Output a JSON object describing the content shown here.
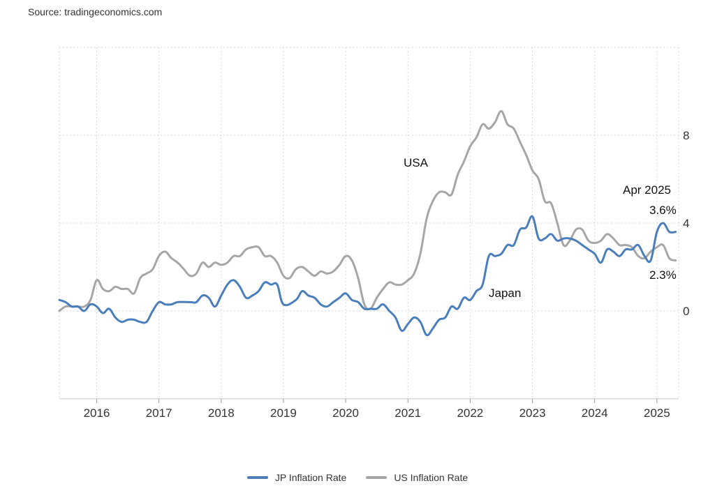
{
  "source": "Source: tradingeconomics.com",
  "legend": [
    {
      "label": "JP Inflation Rate",
      "color": "#4a7ebb"
    },
    {
      "label": "US Inflation Rate",
      "color": "#a6a6a6"
    }
  ],
  "annotations": {
    "usa_label": "USA",
    "japan_label": "Japan",
    "date_label": "Apr 2025",
    "jp_last": "3.6%",
    "us_last": "2.3%"
  },
  "chart_data": {
    "type": "line",
    "xlim": [
      2015.4,
      2025.35
    ],
    "ylim": [
      -4,
      12
    ],
    "x_ticks": [
      2016,
      2017,
      2018,
      2019,
      2020,
      2021,
      2022,
      2023,
      2024,
      2025
    ],
    "x_tick_labels": [
      "2016",
      "2017",
      "2018",
      "2019",
      "2020",
      "2021",
      "2022",
      "2023",
      "2024",
      "2025"
    ],
    "y_ticks": [
      0,
      4,
      8
    ],
    "y_tick_labels": [
      "0",
      "4",
      "8"
    ],
    "grid": true,
    "legend_position": "bottom",
    "series": [
      {
        "name": "JP Inflation Rate",
        "color": "#4a7ebb",
        "points": [
          [
            2015.4,
            0.5
          ],
          [
            2015.5,
            0.4
          ],
          [
            2015.6,
            0.2
          ],
          [
            2015.7,
            0.2
          ],
          [
            2015.8,
            0.0
          ],
          [
            2015.9,
            0.3
          ],
          [
            2016.0,
            0.2
          ],
          [
            2016.1,
            -0.1
          ],
          [
            2016.2,
            0.1
          ],
          [
            2016.3,
            -0.3
          ],
          [
            2016.4,
            -0.5
          ],
          [
            2016.5,
            -0.4
          ],
          [
            2016.6,
            -0.4
          ],
          [
            2016.7,
            -0.5
          ],
          [
            2016.8,
            -0.5
          ],
          [
            2016.9,
            0.0
          ],
          [
            2017.0,
            0.4
          ],
          [
            2017.1,
            0.3
          ],
          [
            2017.2,
            0.3
          ],
          [
            2017.3,
            0.4
          ],
          [
            2017.5,
            0.4
          ],
          [
            2017.6,
            0.4
          ],
          [
            2017.7,
            0.7
          ],
          [
            2017.8,
            0.6
          ],
          [
            2017.9,
            0.2
          ],
          [
            2018.0,
            0.7
          ],
          [
            2018.1,
            1.2
          ],
          [
            2018.2,
            1.4
          ],
          [
            2018.3,
            1.1
          ],
          [
            2018.4,
            0.6
          ],
          [
            2018.5,
            0.7
          ],
          [
            2018.6,
            0.9
          ],
          [
            2018.7,
            1.3
          ],
          [
            2018.8,
            1.2
          ],
          [
            2018.9,
            1.2
          ],
          [
            2019.0,
            0.3
          ],
          [
            2019.2,
            0.5
          ],
          [
            2019.3,
            0.9
          ],
          [
            2019.4,
            0.7
          ],
          [
            2019.5,
            0.6
          ],
          [
            2019.6,
            0.3
          ],
          [
            2019.7,
            0.2
          ],
          [
            2019.8,
            0.4
          ],
          [
            2019.9,
            0.6
          ],
          [
            2020.0,
            0.8
          ],
          [
            2020.1,
            0.5
          ],
          [
            2020.2,
            0.4
          ],
          [
            2020.3,
            0.1
          ],
          [
            2020.4,
            0.1
          ],
          [
            2020.5,
            0.1
          ],
          [
            2020.6,
            0.3
          ],
          [
            2020.7,
            0.0
          ],
          [
            2020.8,
            -0.3
          ],
          [
            2020.9,
            -0.9
          ],
          [
            2021.0,
            -0.6
          ],
          [
            2021.1,
            -0.3
          ],
          [
            2021.2,
            -0.5
          ],
          [
            2021.3,
            -1.1
          ],
          [
            2021.4,
            -0.8
          ],
          [
            2021.5,
            -0.4
          ],
          [
            2021.6,
            -0.3
          ],
          [
            2021.7,
            0.2
          ],
          [
            2021.8,
            0.1
          ],
          [
            2021.9,
            0.6
          ],
          [
            2022.0,
            0.5
          ],
          [
            2022.1,
            0.9
          ],
          [
            2022.2,
            1.2
          ],
          [
            2022.3,
            2.5
          ],
          [
            2022.4,
            2.5
          ],
          [
            2022.5,
            2.6
          ],
          [
            2022.6,
            3.0
          ],
          [
            2022.7,
            3.0
          ],
          [
            2022.8,
            3.7
          ],
          [
            2022.9,
            3.8
          ],
          [
            2023.0,
            4.3
          ],
          [
            2023.1,
            3.3
          ],
          [
            2023.2,
            3.3
          ],
          [
            2023.3,
            3.5
          ],
          [
            2023.4,
            3.2
          ],
          [
            2023.5,
            3.3
          ],
          [
            2023.6,
            3.3
          ],
          [
            2023.7,
            3.2
          ],
          [
            2023.8,
            3.0
          ],
          [
            2023.9,
            2.8
          ],
          [
            2024.0,
            2.6
          ],
          [
            2024.1,
            2.2
          ],
          [
            2024.2,
            2.8
          ],
          [
            2024.3,
            2.7
          ],
          [
            2024.4,
            2.5
          ],
          [
            2024.5,
            2.8
          ],
          [
            2024.6,
            2.8
          ],
          [
            2024.7,
            3.0
          ],
          [
            2024.8,
            2.5
          ],
          [
            2024.9,
            2.3
          ],
          [
            2025.0,
            3.6
          ],
          [
            2025.1,
            4.0
          ],
          [
            2025.2,
            3.6
          ],
          [
            2025.3,
            3.6
          ]
        ]
      },
      {
        "name": "US Inflation Rate",
        "color": "#a6a6a6",
        "points": [
          [
            2015.4,
            0.0
          ],
          [
            2015.5,
            0.2
          ],
          [
            2015.6,
            0.2
          ],
          [
            2015.7,
            0.2
          ],
          [
            2015.8,
            0.2
          ],
          [
            2015.9,
            0.5
          ],
          [
            2016.0,
            1.4
          ],
          [
            2016.1,
            1.0
          ],
          [
            2016.2,
            0.9
          ],
          [
            2016.3,
            1.1
          ],
          [
            2016.4,
            1.0
          ],
          [
            2016.5,
            1.0
          ],
          [
            2016.6,
            0.8
          ],
          [
            2016.7,
            1.5
          ],
          [
            2016.8,
            1.7
          ],
          [
            2016.9,
            1.9
          ],
          [
            2017.0,
            2.5
          ],
          [
            2017.1,
            2.7
          ],
          [
            2017.2,
            2.4
          ],
          [
            2017.3,
            2.2
          ],
          [
            2017.4,
            1.9
          ],
          [
            2017.5,
            1.6
          ],
          [
            2017.6,
            1.7
          ],
          [
            2017.7,
            2.2
          ],
          [
            2017.8,
            2.0
          ],
          [
            2017.9,
            2.2
          ],
          [
            2018.0,
            2.1
          ],
          [
            2018.1,
            2.2
          ],
          [
            2018.2,
            2.5
          ],
          [
            2018.3,
            2.5
          ],
          [
            2018.4,
            2.8
          ],
          [
            2018.5,
            2.9
          ],
          [
            2018.6,
            2.9
          ],
          [
            2018.7,
            2.5
          ],
          [
            2018.8,
            2.5
          ],
          [
            2018.9,
            2.2
          ],
          [
            2019.0,
            1.6
          ],
          [
            2019.1,
            1.5
          ],
          [
            2019.2,
            1.9
          ],
          [
            2019.3,
            2.0
          ],
          [
            2019.4,
            1.8
          ],
          [
            2019.5,
            1.6
          ],
          [
            2019.6,
            1.8
          ],
          [
            2019.7,
            1.7
          ],
          [
            2019.8,
            1.8
          ],
          [
            2019.9,
            2.1
          ],
          [
            2020.0,
            2.5
          ],
          [
            2020.1,
            2.3
          ],
          [
            2020.2,
            1.5
          ],
          [
            2020.3,
            0.3
          ],
          [
            2020.4,
            0.1
          ],
          [
            2020.5,
            0.6
          ],
          [
            2020.6,
            1.0
          ],
          [
            2020.7,
            1.3
          ],
          [
            2020.8,
            1.2
          ],
          [
            2020.9,
            1.2
          ],
          [
            2021.0,
            1.4
          ],
          [
            2021.1,
            1.7
          ],
          [
            2021.2,
            2.6
          ],
          [
            2021.3,
            4.2
          ],
          [
            2021.4,
            5.0
          ],
          [
            2021.5,
            5.4
          ],
          [
            2021.6,
            5.4
          ],
          [
            2021.7,
            5.3
          ],
          [
            2021.8,
            6.2
          ],
          [
            2021.9,
            6.8
          ],
          [
            2022.0,
            7.5
          ],
          [
            2022.1,
            7.9
          ],
          [
            2022.2,
            8.5
          ],
          [
            2022.3,
            8.3
          ],
          [
            2022.4,
            8.6
          ],
          [
            2022.5,
            9.1
          ],
          [
            2022.6,
            8.5
          ],
          [
            2022.7,
            8.3
          ],
          [
            2022.8,
            7.7
          ],
          [
            2022.9,
            7.1
          ],
          [
            2023.0,
            6.4
          ],
          [
            2023.1,
            6.0
          ],
          [
            2023.2,
            5.0
          ],
          [
            2023.3,
            4.9
          ],
          [
            2023.4,
            4.0
          ],
          [
            2023.5,
            3.0
          ],
          [
            2023.6,
            3.2
          ],
          [
            2023.7,
            3.7
          ],
          [
            2023.8,
            3.7
          ],
          [
            2023.9,
            3.2
          ],
          [
            2024.0,
            3.1
          ],
          [
            2024.1,
            3.2
          ],
          [
            2024.2,
            3.5
          ],
          [
            2024.3,
            3.3
          ],
          [
            2024.4,
            3.0
          ],
          [
            2024.5,
            3.0
          ],
          [
            2024.6,
            2.9
          ],
          [
            2024.7,
            2.5
          ],
          [
            2024.8,
            2.4
          ],
          [
            2024.9,
            2.7
          ],
          [
            2025.0,
            2.9
          ],
          [
            2025.1,
            3.0
          ],
          [
            2025.2,
            2.4
          ],
          [
            2025.3,
            2.3
          ]
        ]
      }
    ]
  }
}
